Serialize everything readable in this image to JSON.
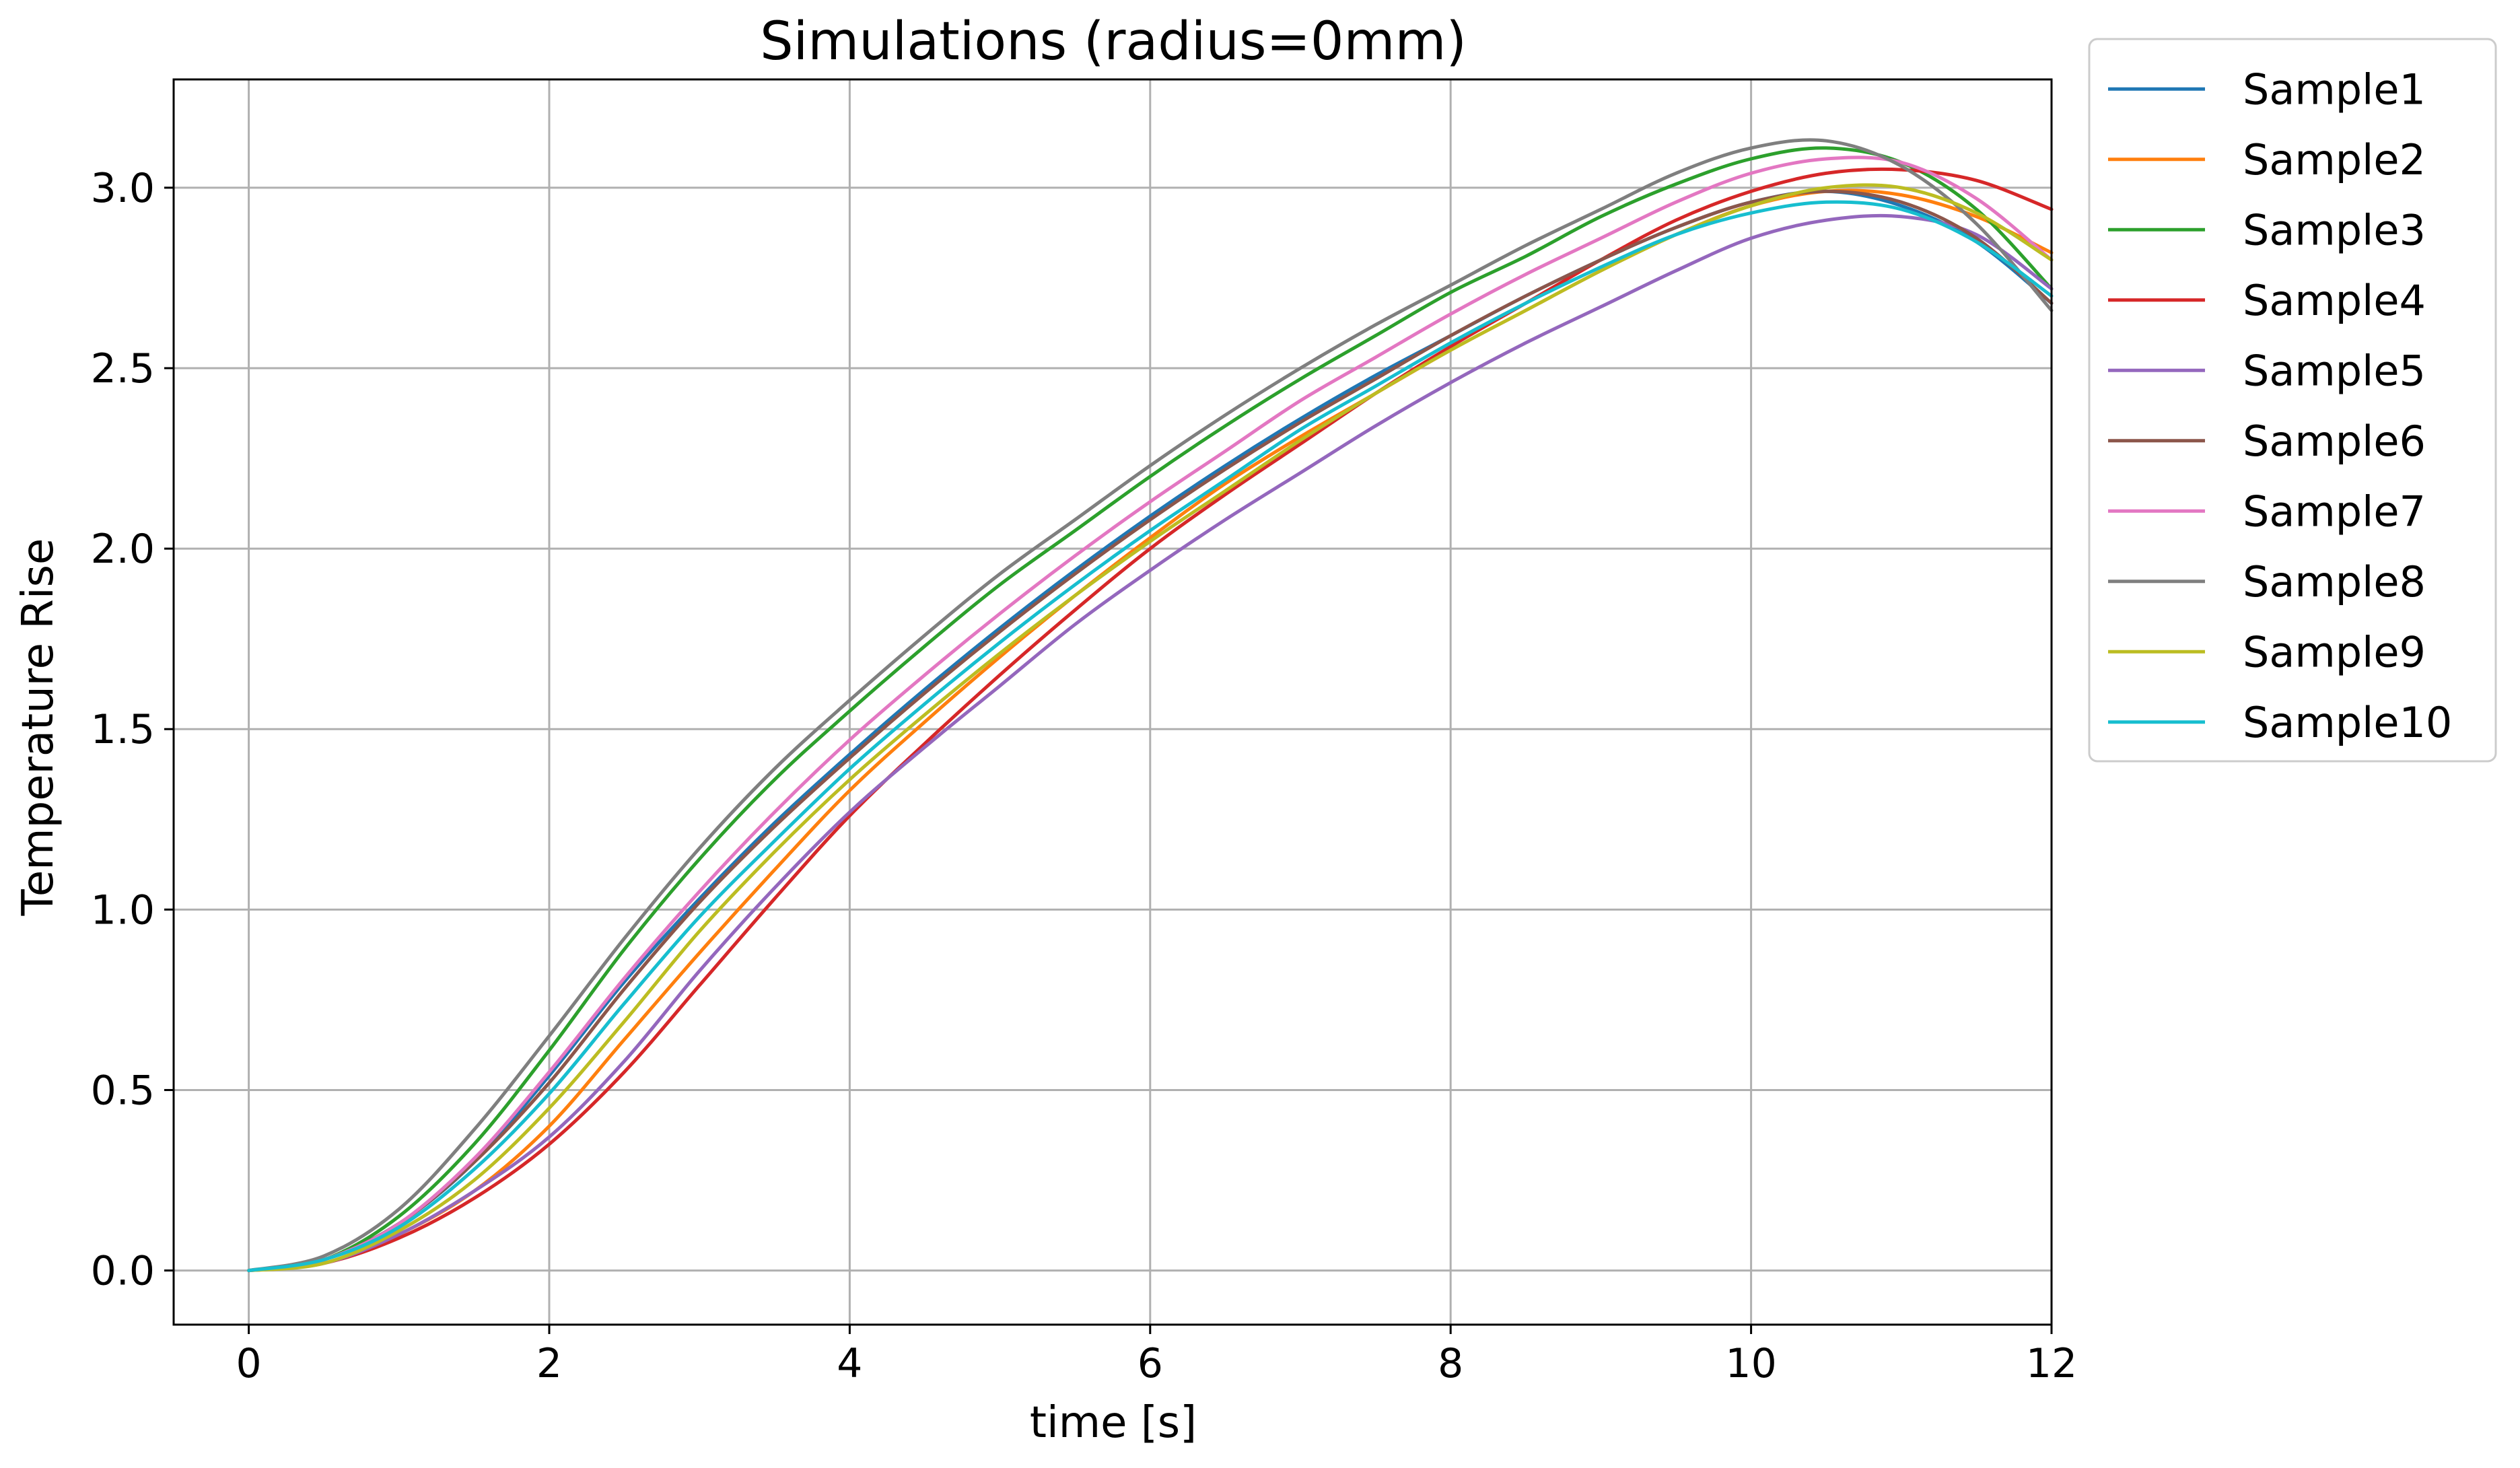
{
  "chart_data": {
    "type": "line",
    "title": "Simulations (radius=0mm)",
    "xlabel": "time [s]",
    "ylabel": "Temperature Rise",
    "xlim": [
      -0.5,
      12
    ],
    "ylim": [
      -0.15,
      3.3
    ],
    "xticks": [
      0,
      2,
      4,
      6,
      8,
      10,
      12
    ],
    "xtick_labels": [
      "0",
      "2",
      "4",
      "6",
      "8",
      "10",
      "12"
    ],
    "yticks": [
      0.0,
      0.5,
      1.0,
      1.5,
      2.0,
      2.5,
      3.0
    ],
    "ytick_labels": [
      "0.0",
      "0.5",
      "1.0",
      "1.5",
      "2.0",
      "2.5",
      "3.0"
    ],
    "grid": true,
    "legend_position": "outside-right-top",
    "x": [
      0,
      0.5,
      1,
      1.5,
      2,
      2.5,
      3,
      3.5,
      4,
      4.5,
      5,
      5.5,
      6,
      6.5,
      7,
      7.5,
      8,
      8.5,
      9,
      9.5,
      10,
      10.5,
      11,
      11.5,
      12
    ],
    "series": [
      {
        "name": "Sample1",
        "color": "#1f77b4",
        "values": [
          0,
          0.03,
          0.13,
          0.3,
          0.54,
          0.8,
          1.03,
          1.24,
          1.43,
          1.61,
          1.78,
          1.94,
          2.09,
          2.23,
          2.36,
          2.48,
          2.59,
          2.7,
          2.8,
          2.89,
          2.96,
          2.99,
          2.95,
          2.85,
          2.68
        ]
      },
      {
        "name": "Sample2",
        "color": "#ff7f0e",
        "values": [
          0,
          0.02,
          0.1,
          0.22,
          0.4,
          0.64,
          0.88,
          1.11,
          1.33,
          1.52,
          1.7,
          1.87,
          2.03,
          2.18,
          2.31,
          2.43,
          2.55,
          2.66,
          2.77,
          2.87,
          2.95,
          2.99,
          2.98,
          2.92,
          2.82
        ]
      },
      {
        "name": "Sample3",
        "color": "#2ca02c",
        "values": [
          0,
          0.03,
          0.15,
          0.35,
          0.61,
          0.89,
          1.14,
          1.36,
          1.55,
          1.73,
          1.9,
          2.05,
          2.2,
          2.34,
          2.47,
          2.59,
          2.71,
          2.81,
          2.92,
          3.01,
          3.08,
          3.11,
          3.07,
          2.94,
          2.72
        ]
      },
      {
        "name": "Sample4",
        "color": "#d62728",
        "values": [
          0,
          0.02,
          0.09,
          0.2,
          0.35,
          0.55,
          0.79,
          1.03,
          1.26,
          1.46,
          1.65,
          1.83,
          2.0,
          2.15,
          2.29,
          2.43,
          2.56,
          2.68,
          2.8,
          2.91,
          2.99,
          3.04,
          3.05,
          3.02,
          2.94
        ]
      },
      {
        "name": "Sample5",
        "color": "#9467bd",
        "values": [
          0,
          0.02,
          0.1,
          0.22,
          0.37,
          0.58,
          0.83,
          1.06,
          1.27,
          1.45,
          1.62,
          1.79,
          1.94,
          2.08,
          2.21,
          2.34,
          2.46,
          2.57,
          2.67,
          2.77,
          2.86,
          2.91,
          2.92,
          2.87,
          2.72
        ]
      },
      {
        "name": "Sample6",
        "color": "#8c564b",
        "values": [
          0,
          0.03,
          0.13,
          0.3,
          0.52,
          0.78,
          1.02,
          1.23,
          1.42,
          1.6,
          1.77,
          1.93,
          2.08,
          2.22,
          2.35,
          2.47,
          2.59,
          2.7,
          2.8,
          2.89,
          2.96,
          2.99,
          2.96,
          2.86,
          2.68
        ]
      },
      {
        "name": "Sample7",
        "color": "#e377c2",
        "values": [
          0,
          0.03,
          0.13,
          0.31,
          0.55,
          0.81,
          1.05,
          1.27,
          1.47,
          1.65,
          1.82,
          1.98,
          2.13,
          2.27,
          2.41,
          2.53,
          2.65,
          2.76,
          2.86,
          2.96,
          3.04,
          3.08,
          3.07,
          2.97,
          2.8
        ]
      },
      {
        "name": "Sample8",
        "color": "#7f7f7f",
        "values": [
          0,
          0.04,
          0.17,
          0.39,
          0.65,
          0.92,
          1.17,
          1.39,
          1.58,
          1.76,
          1.93,
          2.08,
          2.23,
          2.37,
          2.5,
          2.62,
          2.73,
          2.84,
          2.94,
          3.04,
          3.11,
          3.13,
          3.06,
          2.9,
          2.66
        ]
      },
      {
        "name": "Sample9",
        "color": "#bcbd22",
        "values": [
          0,
          0.02,
          0.11,
          0.25,
          0.45,
          0.69,
          0.94,
          1.16,
          1.36,
          1.54,
          1.71,
          1.87,
          2.02,
          2.16,
          2.3,
          2.43,
          2.55,
          2.66,
          2.77,
          2.87,
          2.95,
          3.0,
          3.0,
          2.93,
          2.8
        ]
      },
      {
        "name": "Sample10",
        "color": "#17becf",
        "values": [
          0,
          0.03,
          0.12,
          0.28,
          0.49,
          0.74,
          0.98,
          1.19,
          1.39,
          1.57,
          1.74,
          1.9,
          2.05,
          2.19,
          2.33,
          2.45,
          2.57,
          2.68,
          2.78,
          2.87,
          2.93,
          2.96,
          2.94,
          2.85,
          2.7
        ]
      }
    ]
  }
}
